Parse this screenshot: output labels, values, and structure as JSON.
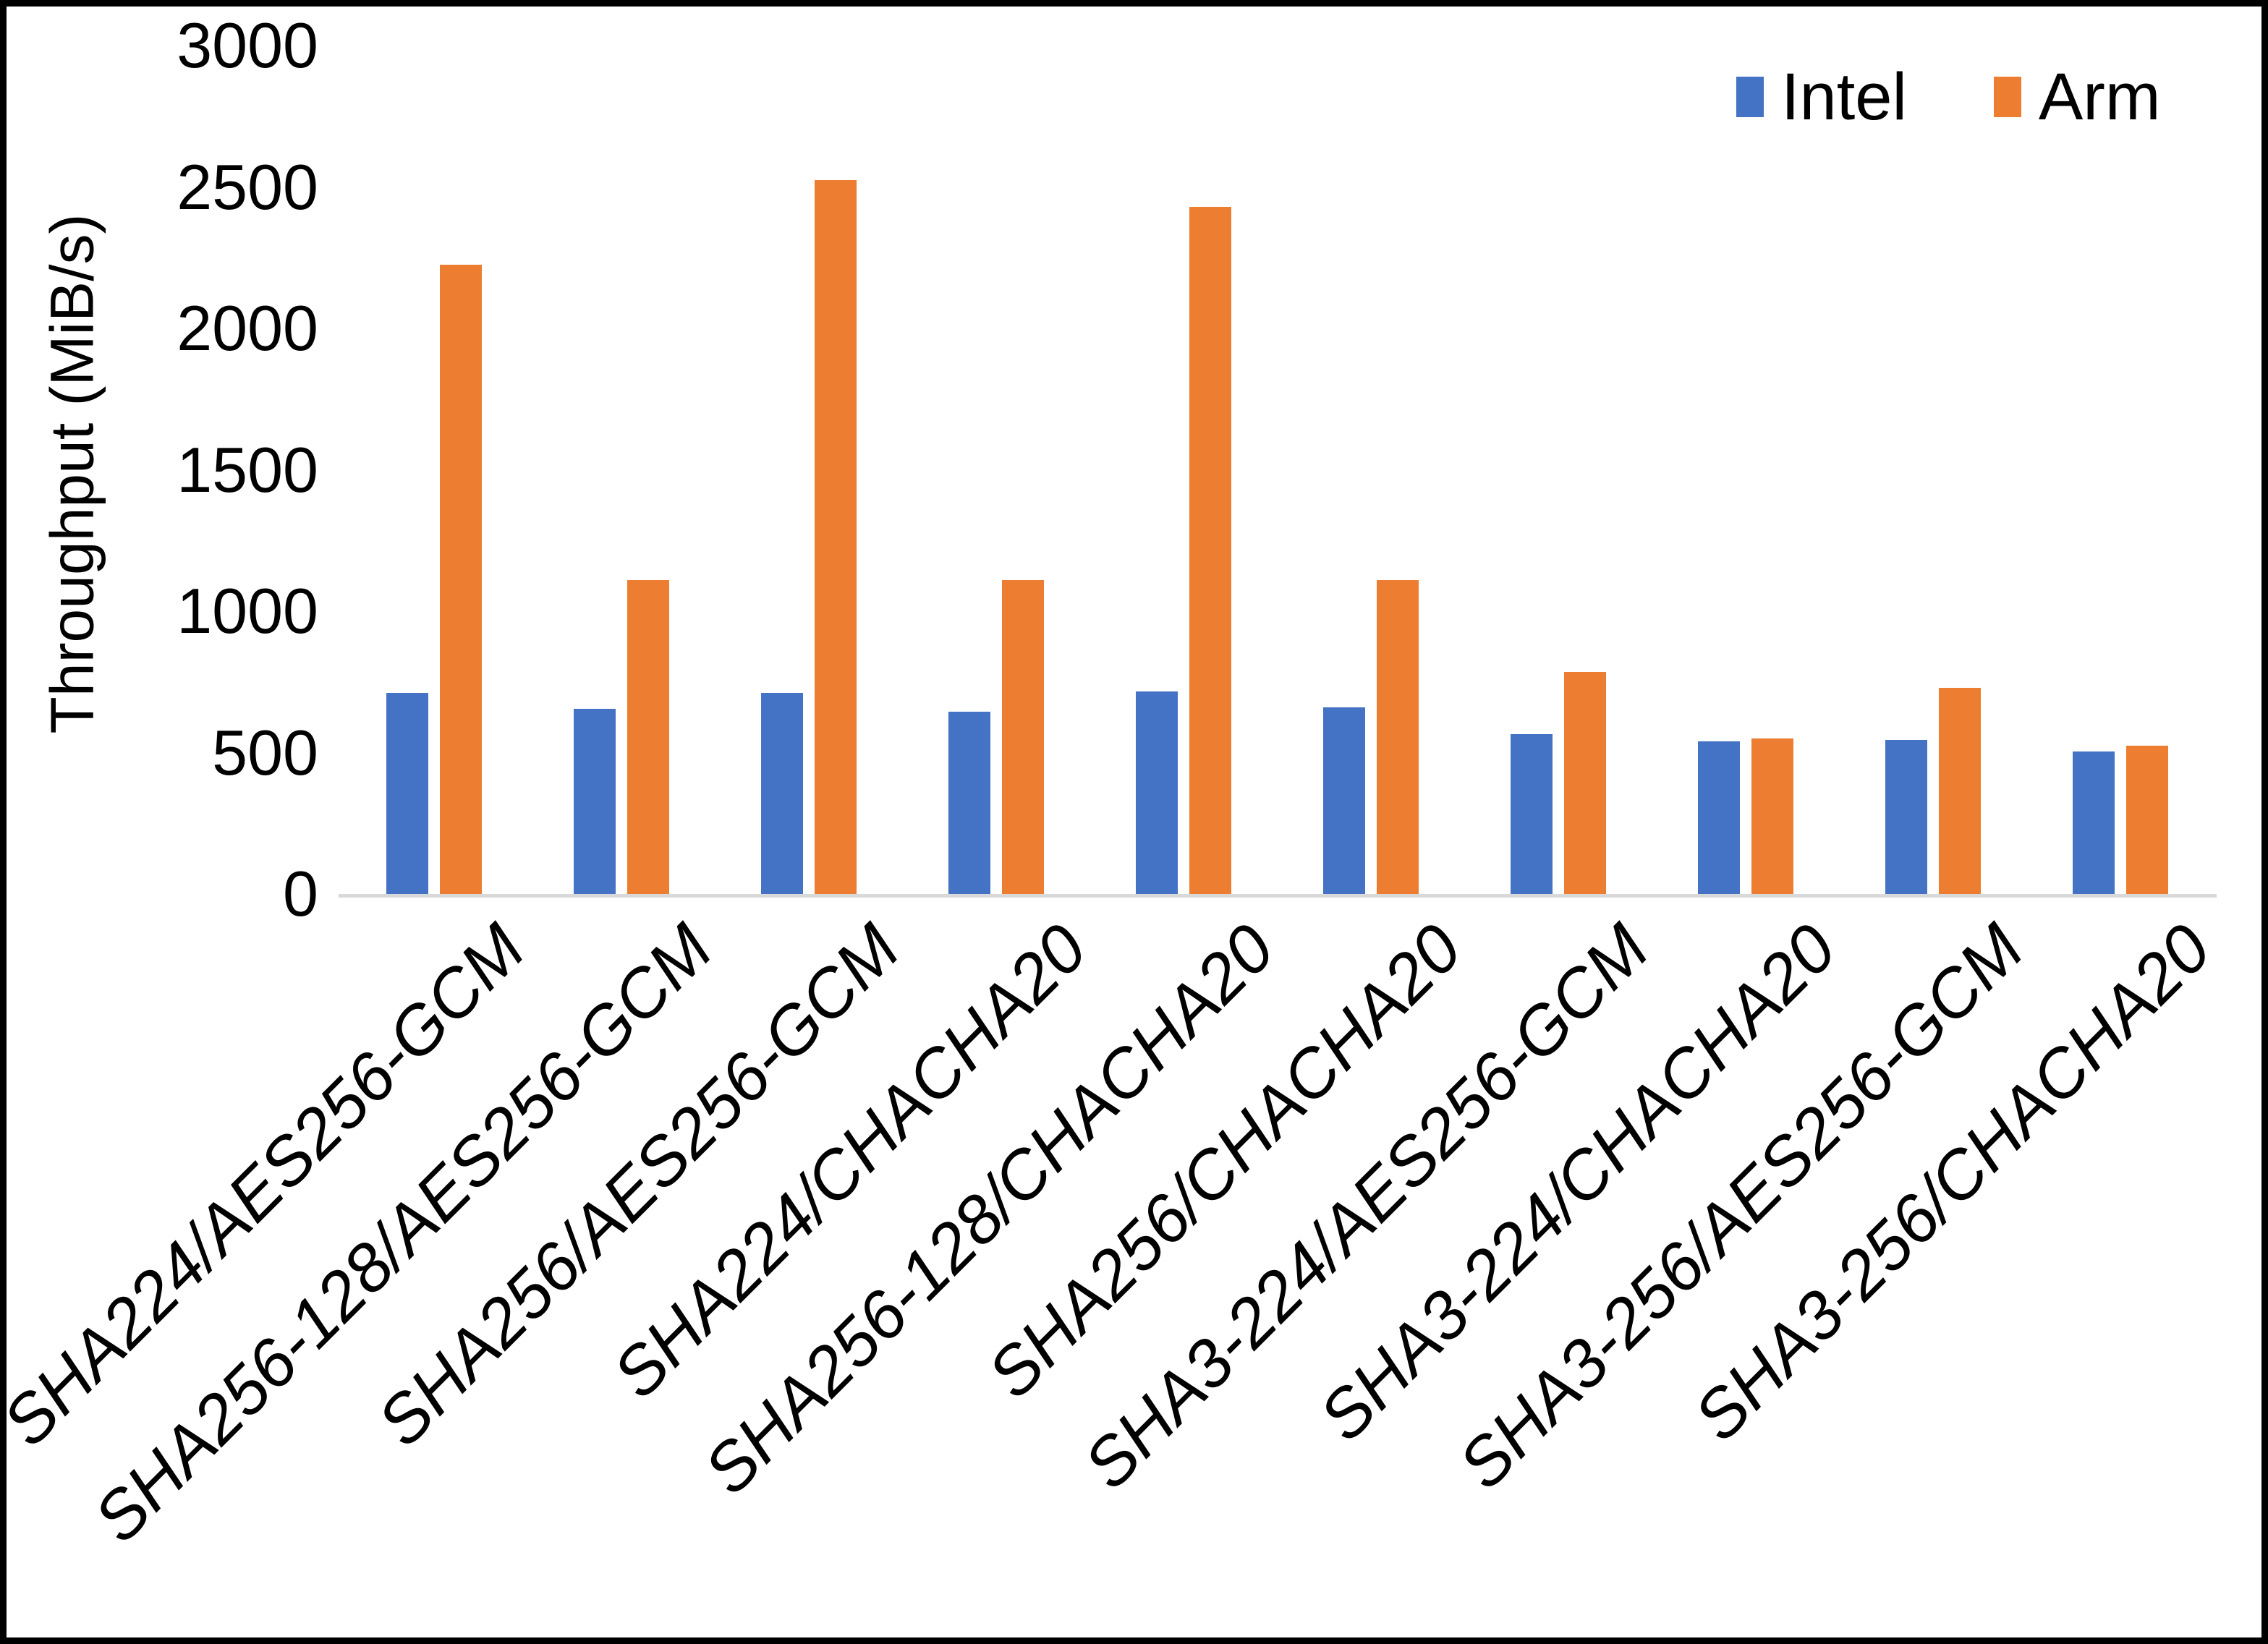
{
  "colors": {
    "intel": "#4472C4",
    "arm": "#ED7D31",
    "axis_line": "#D9D9D9",
    "text": "#000000",
    "background": "#FFFFFF",
    "frame_border": "#000000"
  },
  "legend": {
    "intel_label": "Intel",
    "arm_label": "Arm"
  },
  "chart_data": {
    "type": "bar",
    "title": "",
    "xlabel": "",
    "ylabel": "Throughput (MiB/s)",
    "ylim": [
      0,
      3000
    ],
    "yticks": [
      3000,
      2500,
      2000,
      1500,
      1000,
      500,
      0
    ],
    "grid": false,
    "legend_position": "top-right",
    "categories": [
      "SHA224/AES256-GCM",
      "SHA256-128/AES256-GCM",
      "SHA256/AES256-GCM",
      "SHA224/CHACHA20",
      "SHA256-128/CHACHA20",
      "SHA256/CHACHA20",
      "SHA3-224/AES256-GCM",
      "SHA3-224/CHACHA20",
      "SHA3-256/AES256-GCM",
      "SHA3-256/CHACHA20"
    ],
    "series": [
      {
        "name": "Intel",
        "color": "#4472C4",
        "values": [
          710,
          655,
          710,
          645,
          715,
          660,
          565,
          540,
          545,
          505
        ]
      },
      {
        "name": "Arm",
        "color": "#ED7D31",
        "values": [
          2225,
          1110,
          2525,
          1110,
          2430,
          1110,
          785,
          550,
          730,
          525
        ]
      }
    ]
  }
}
